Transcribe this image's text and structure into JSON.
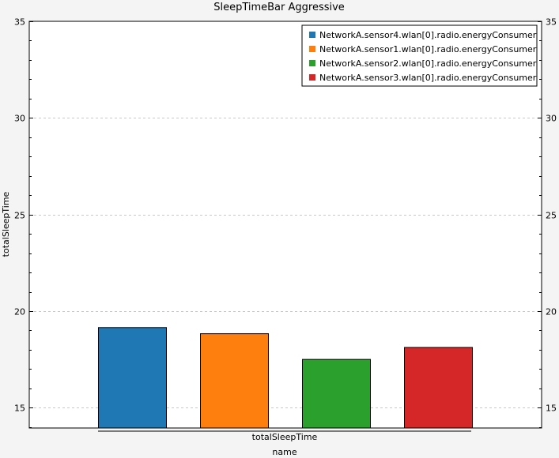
{
  "chart_data": {
    "type": "bar",
    "title": "SleepTimeBar Aggressive",
    "xlabel": "name",
    "ylabel": "totalSleepTime",
    "group_label": "totalSleepTime",
    "ylim": [
      13.95,
      35
    ],
    "yticks": [
      15,
      20,
      25,
      30,
      35
    ],
    "grid": true,
    "legend_position": "top-right",
    "series": [
      {
        "name": "NetworkA.sensor4.wlan[0].radio.energyConsumer",
        "value": 19.15,
        "color": "#1f77b4"
      },
      {
        "name": "NetworkA.sensor1.wlan[0].radio.energyConsumer",
        "value": 18.83,
        "color": "#ff7f0e"
      },
      {
        "name": "NetworkA.sensor2.wlan[0].radio.energyConsumer",
        "value": 17.5,
        "color": "#2ca02c"
      },
      {
        "name": "NetworkA.sensor3.wlan[0].radio.energyConsumer",
        "value": 18.12,
        "color": "#d62728"
      }
    ]
  }
}
